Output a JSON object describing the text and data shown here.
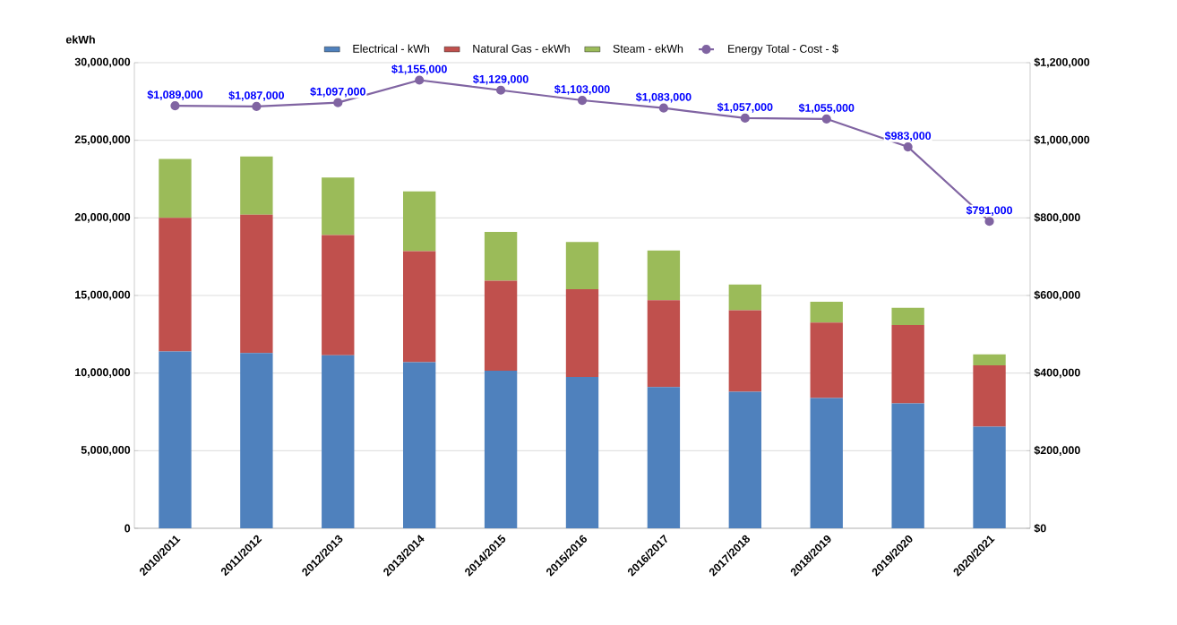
{
  "chart_data": {
    "type": "bar",
    "stacked": true,
    "ylabel": "ekWh",
    "categories": [
      "2010/2011",
      "2011/2012",
      "2012/2013",
      "2013/2014",
      "2014/2015",
      "2015/2016",
      "2016/2017",
      "2017/2018",
      "2018/2019",
      "2019/2020",
      "2020/2021"
    ],
    "series": [
      {
        "name": "Electrical - kWh",
        "color": "#4f81bd",
        "values": [
          11400000,
          11300000,
          11150000,
          10700000,
          10150000,
          9750000,
          9100000,
          8800000,
          8400000,
          8050000,
          6550000
        ]
      },
      {
        "name": "Natural Gas - ekWh",
        "color": "#c0504d",
        "values": [
          8600000,
          8900000,
          7750000,
          7150000,
          5800000,
          5650000,
          5600000,
          5250000,
          4850000,
          5050000,
          3950000
        ]
      },
      {
        "name": "Steam - ekWh",
        "color": "#9bbb59",
        "values": [
          3800000,
          3750000,
          3700000,
          3850000,
          3150000,
          3050000,
          3200000,
          1650000,
          1350000,
          1100000,
          700000
        ]
      },
      {
        "name": "Energy Total - Cost - $",
        "type": "line",
        "axis": "y2",
        "marker": "circle",
        "color": "#8064a2",
        "values": [
          1089000,
          1087000,
          1097000,
          1155000,
          1129000,
          1103000,
          1083000,
          1057000,
          1055000,
          983000,
          791000
        ],
        "value_labels": [
          "$1,089,000",
          "$1,087,000",
          "$1,097,000",
          "$1,155,000",
          "$1,129,000",
          "$1,103,000",
          "$1,083,000",
          "$1,057,000",
          "$1,055,000",
          "$983,000",
          "$791,000"
        ]
      }
    ],
    "ylim": [
      0,
      30000000
    ],
    "yticks": [
      {
        "value": 0,
        "label": "0"
      },
      {
        "value": 5000000,
        "label": "5,000,000"
      },
      {
        "value": 10000000,
        "label": "10,000,000"
      },
      {
        "value": 15000000,
        "label": "15,000,000"
      },
      {
        "value": 20000000,
        "label": "20,000,000"
      },
      {
        "value": 25000000,
        "label": "25,000,000"
      },
      {
        "value": 30000000,
        "label": "30,000,000"
      }
    ],
    "y2lim": [
      0,
      1200000
    ],
    "y2ticks": [
      {
        "value": 0,
        "label": "$0"
      },
      {
        "value": 200000,
        "label": "$200,000"
      },
      {
        "value": 400000,
        "label": "$400,000"
      },
      {
        "value": 600000,
        "label": "$600,000"
      },
      {
        "value": 800000,
        "label": "$800,000"
      },
      {
        "value": 1000000,
        "label": "$1,000,000"
      },
      {
        "value": 1200000,
        "label": "$1,200,000"
      }
    ],
    "grid": "y",
    "legend": "top"
  }
}
